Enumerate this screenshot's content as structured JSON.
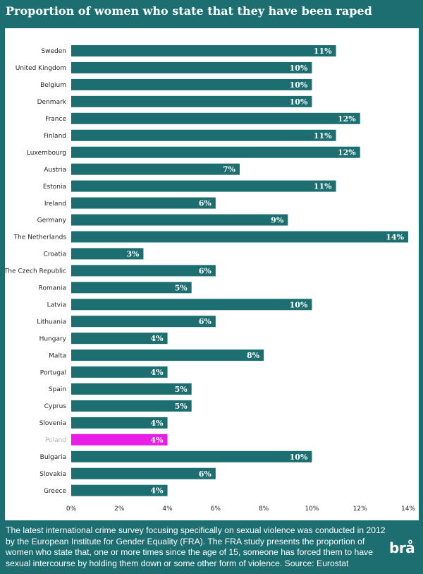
{
  "title": "Proportion of women who state that they have been raped",
  "caption": "The latest international crime survey focusing specifically on sexual violence was conducted in 2012 by the European Institute for Gender Equality (FRA). The FRA study presents the proportion of women who state that, one or more times since the age of 15, someone has forced them to have sexual intercourse by holding them down or some other form of violence. Source: Eurostat",
  "logo": "brå",
  "colors": {
    "background": "#1d6e70",
    "bar": "#1d6e70",
    "highlight": "#e81ee6",
    "plot_bg": "#ffffff"
  },
  "chart_data": {
    "type": "bar",
    "orientation": "horizontal",
    "categories": [
      "Sweden",
      "United Kingdom",
      "Belgium",
      "Denmark",
      "France",
      "Finland",
      "Luxembourg",
      "Austria",
      "Estonia",
      "Ireland",
      "Germany",
      "The Netherlands",
      "Croatia",
      "The Czech Republic",
      "Romania",
      "Latvia",
      "Lithuania",
      "Hungary",
      "Malta",
      "Portugal",
      "Spain",
      "Cyprus",
      "Slovenia",
      "Poland",
      "Bulgaria",
      "Slovakia",
      "Greece"
    ],
    "values": [
      11,
      10,
      10,
      10,
      12,
      11,
      12,
      7,
      11,
      6,
      9,
      14,
      3,
      6,
      5,
      10,
      6,
      4,
      8,
      4,
      5,
      5,
      4,
      4,
      10,
      6,
      4
    ],
    "value_labels": [
      "11%",
      "10%",
      "10%",
      "10%",
      "12%",
      "11%",
      "12%",
      "7%",
      "11%",
      "6%",
      "9%",
      "14%",
      "3%",
      "6%",
      "5%",
      "10%",
      "6%",
      "4%",
      "8%",
      "4%",
      "5%",
      "5%",
      "4%",
      "4%",
      "10%",
      "6%",
      "4%"
    ],
    "highlight": "Poland",
    "xlim": [
      0,
      14
    ],
    "xticks": [
      0,
      2,
      4,
      6,
      8,
      10,
      12,
      14
    ],
    "xtick_labels": [
      "0%",
      "2%",
      "4%",
      "6%",
      "8%",
      "10%",
      "12%",
      "14%"
    ],
    "grid": false,
    "legend": "none"
  }
}
